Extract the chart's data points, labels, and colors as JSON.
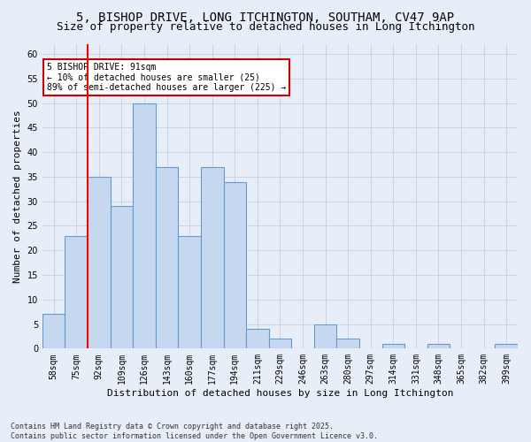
{
  "title_line1": "5, BISHOP DRIVE, LONG ITCHINGTON, SOUTHAM, CV47 9AP",
  "title_line2": "Size of property relative to detached houses in Long Itchington",
  "xlabel": "Distribution of detached houses by size in Long Itchington",
  "ylabel": "Number of detached properties",
  "categories": [
    "58sqm",
    "75sqm",
    "92sqm",
    "109sqm",
    "126sqm",
    "143sqm",
    "160sqm",
    "177sqm",
    "194sqm",
    "211sqm",
    "229sqm",
    "246sqm",
    "263sqm",
    "280sqm",
    "297sqm",
    "314sqm",
    "331sqm",
    "348sqm",
    "365sqm",
    "382sqm",
    "399sqm"
  ],
  "values": [
    7,
    23,
    35,
    29,
    50,
    37,
    23,
    37,
    34,
    4,
    2,
    0,
    5,
    2,
    0,
    1,
    0,
    1,
    0,
    0,
    1
  ],
  "bar_color": "#c5d8f0",
  "bar_edge_color": "#6699cc",
  "bar_edge_width": 0.8,
  "grid_color": "#c8d4e8",
  "bg_color": "#e8eef8",
  "ylim": [
    0,
    62
  ],
  "yticks": [
    0,
    5,
    10,
    15,
    20,
    25,
    30,
    35,
    40,
    45,
    50,
    55,
    60
  ],
  "red_line_index": 2,
  "annotation_text": "5 BISHOP DRIVE: 91sqm\n← 10% of detached houses are smaller (25)\n89% of semi-detached houses are larger (225) →",
  "annotation_box_color": "#ffffff",
  "annotation_box_edge_color": "#cc0000",
  "footer_text": "Contains HM Land Registry data © Crown copyright and database right 2025.\nContains public sector information licensed under the Open Government Licence v3.0.",
  "title_fontsize": 10,
  "subtitle_fontsize": 9,
  "tick_fontsize": 7,
  "ylabel_fontsize": 8,
  "xlabel_fontsize": 8,
  "annotation_fontsize": 7,
  "footer_fontsize": 6
}
